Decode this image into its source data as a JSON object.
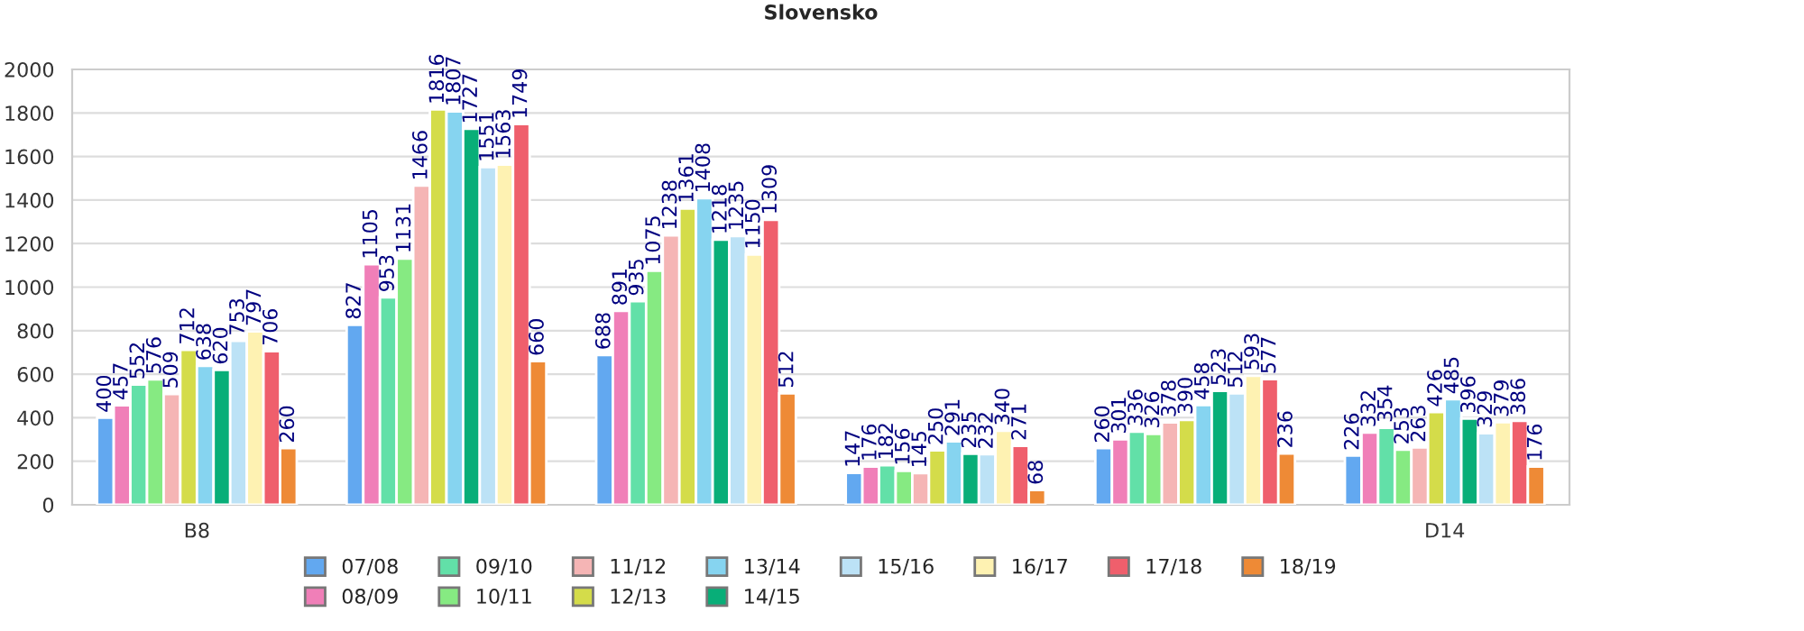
{
  "chart_data": {
    "type": "bar",
    "title": "Slovensko",
    "categories": [
      "B8",
      null,
      null,
      null,
      null,
      "D14"
    ],
    "series": [
      {
        "name": "07/08",
        "color": "#62a8f0",
        "values": [
          400,
          827,
          688,
          147,
          260,
          226
        ]
      },
      {
        "name": "08/09",
        "color": "#f07fb8",
        "values": [
          457,
          1105,
          891,
          176,
          301,
          332
        ]
      },
      {
        "name": "09/10",
        "color": "#62e0a8",
        "values": [
          552,
          953,
          935,
          182,
          336,
          354
        ]
      },
      {
        "name": "10/11",
        "color": "#86ea82",
        "values": [
          576,
          1131,
          1075,
          156,
          326,
          253
        ]
      },
      {
        "name": "11/12",
        "color": "#f5b5b5",
        "values": [
          509,
          1466,
          1238,
          145,
          378,
          263
        ]
      },
      {
        "name": "12/13",
        "color": "#d4dc4a",
        "values": [
          712,
          1816,
          1361,
          250,
          390,
          426
        ]
      },
      {
        "name": "13/14",
        "color": "#86d4f0",
        "values": [
          638,
          1807,
          1408,
          291,
          458,
          485
        ]
      },
      {
        "name": "14/15",
        "color": "#08ae78",
        "values": [
          620,
          1727,
          1218,
          235,
          523,
          396
        ]
      },
      {
        "name": "15/16",
        "color": "#bce2f6",
        "values": [
          753,
          1551,
          1235,
          232,
          512,
          329
        ]
      },
      {
        "name": "16/17",
        "color": "#fef2b2",
        "values": [
          797,
          1563,
          1150,
          340,
          593,
          379
        ]
      },
      {
        "name": "17/18",
        "color": "#ef5f6c",
        "values": [
          706,
          1749,
          1309,
          271,
          577,
          386
        ]
      },
      {
        "name": "18/19",
        "color": "#ee8a36",
        "values": [
          260,
          660,
          512,
          68,
          236,
          176
        ]
      }
    ],
    "ylim": [
      0,
      2000
    ],
    "yticks": [
      0,
      200,
      400,
      600,
      800,
      1000,
      1200,
      1400,
      1600,
      1800,
      2000
    ],
    "grid": "y",
    "legend": "bottom",
    "data_labels": true
  }
}
